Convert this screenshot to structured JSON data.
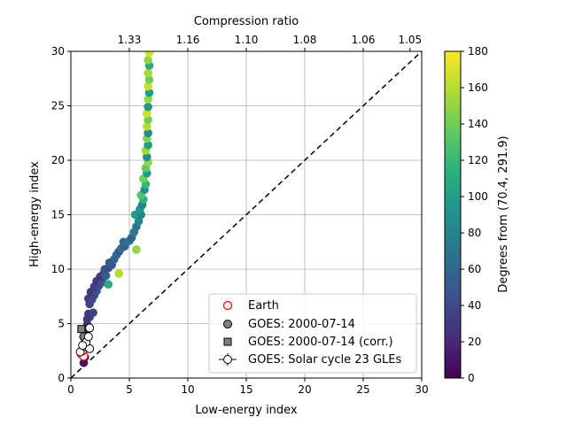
{
  "chart_data": {
    "type": "scatter",
    "xlabel": "Low-energy index",
    "ylabel": "High-energy index",
    "top_xlabel": "Compression ratio",
    "xlim": [
      0,
      30
    ],
    "ylim": [
      0,
      30
    ],
    "xticks": [
      "0",
      "5",
      "10",
      "15",
      "20",
      "25",
      "30"
    ],
    "yticks": [
      "0",
      "5",
      "10",
      "15",
      "20",
      "25",
      "30"
    ],
    "top_ticks": [
      {
        "x": 5,
        "label": "1.33"
      },
      {
        "x": 10,
        "label": "1.16"
      },
      {
        "x": 15,
        "label": "1.10"
      },
      {
        "x": 20,
        "label": "1.08"
      },
      {
        "x": 25,
        "label": "1.06"
      },
      {
        "x": 29,
        "label": "1.05"
      }
    ],
    "grid": true,
    "legend_position": "lower right",
    "colorbar": {
      "label": "Degrees from (70.4, 291.9)",
      "min": 0,
      "max": 180,
      "ticks": [
        "0",
        "20",
        "40",
        "60",
        "80",
        "100",
        "120",
        "140",
        "160",
        "180"
      ],
      "colormap": "viridis"
    },
    "reference_line": {
      "style": "dashed",
      "from": [
        0,
        0
      ],
      "to": [
        30,
        30
      ]
    },
    "legend": [
      {
        "label": "Earth",
        "marker": "open-circle",
        "color": "#ff0000"
      },
      {
        "label": "GOES: 2000-07-14",
        "marker": "circle",
        "color": "#808080"
      },
      {
        "label": "GOES: 2000-07-14 (corr.)",
        "marker": "square",
        "color": "#808080"
      },
      {
        "label": "GOES: Solar cycle 23 GLEs",
        "marker": "errorbar-circle",
        "color": "#ffffff"
      }
    ],
    "series": [
      {
        "name": "Degrees from (70.4, 291.9)",
        "points": [
          {
            "x": 1.1,
            "y": 1.4,
            "c": 10
          },
          {
            "x": 1.2,
            "y": 1.9,
            "c": 15
          },
          {
            "x": 1.0,
            "y": 2.3,
            "c": 12
          },
          {
            "x": 1.3,
            "y": 2.7,
            "c": 18
          },
          {
            "x": 1.1,
            "y": 3.1,
            "c": 15
          },
          {
            "x": 1.2,
            "y": 3.6,
            "c": 20
          },
          {
            "x": 1.3,
            "y": 4.1,
            "c": 22
          },
          {
            "x": 1.2,
            "y": 4.5,
            "c": 20
          },
          {
            "x": 1.4,
            "y": 4.9,
            "c": 25
          },
          {
            "x": 1.4,
            "y": 5.4,
            "c": 28
          },
          {
            "x": 1.6,
            "y": 5.6,
            "c": 30
          },
          {
            "x": 1.5,
            "y": 5.9,
            "c": 28
          },
          {
            "x": 1.9,
            "y": 6.0,
            "c": 35
          },
          {
            "x": 1.6,
            "y": 6.8,
            "c": 35
          },
          {
            "x": 1.5,
            "y": 7.3,
            "c": 32
          },
          {
            "x": 1.8,
            "y": 7.2,
            "c": 40
          },
          {
            "x": 2.0,
            "y": 7.6,
            "c": 38
          },
          {
            "x": 1.7,
            "y": 7.9,
            "c": 30
          },
          {
            "x": 2.2,
            "y": 8.0,
            "c": 45
          },
          {
            "x": 2.0,
            "y": 8.4,
            "c": 32
          },
          {
            "x": 2.4,
            "y": 8.5,
            "c": 40
          },
          {
            "x": 2.2,
            "y": 8.9,
            "c": 28
          },
          {
            "x": 2.7,
            "y": 8.8,
            "c": 45
          },
          {
            "x": 3.2,
            "y": 8.6,
            "c": 110
          },
          {
            "x": 2.5,
            "y": 9.3,
            "c": 30
          },
          {
            "x": 2.8,
            "y": 9.6,
            "c": 38
          },
          {
            "x": 3.0,
            "y": 9.4,
            "c": 55
          },
          {
            "x": 4.1,
            "y": 9.6,
            "c": 160
          },
          {
            "x": 2.9,
            "y": 10.0,
            "c": 45
          },
          {
            "x": 3.2,
            "y": 10.1,
            "c": 42
          },
          {
            "x": 3.5,
            "y": 10.4,
            "c": 48
          },
          {
            "x": 3.3,
            "y": 10.6,
            "c": 52
          },
          {
            "x": 3.7,
            "y": 10.9,
            "c": 55
          },
          {
            "x": 3.9,
            "y": 11.3,
            "c": 60
          },
          {
            "x": 4.1,
            "y": 11.6,
            "c": 48
          },
          {
            "x": 4.3,
            "y": 11.9,
            "c": 65
          },
          {
            "x": 4.6,
            "y": 12.1,
            "c": 55
          },
          {
            "x": 4.5,
            "y": 12.5,
            "c": 60
          },
          {
            "x": 5.0,
            "y": 12.6,
            "c": 70
          },
          {
            "x": 5.2,
            "y": 12.9,
            "c": 58
          },
          {
            "x": 5.4,
            "y": 13.4,
            "c": 75
          },
          {
            "x": 5.6,
            "y": 11.8,
            "c": 150
          },
          {
            "x": 5.6,
            "y": 13.9,
            "c": 70
          },
          {
            "x": 5.8,
            "y": 14.4,
            "c": 85
          },
          {
            "x": 5.5,
            "y": 15.0,
            "c": 100
          },
          {
            "x": 6.0,
            "y": 15.0,
            "c": 80
          },
          {
            "x": 5.9,
            "y": 15.5,
            "c": 95
          },
          {
            "x": 6.1,
            "y": 15.9,
            "c": 78
          },
          {
            "x": 6.2,
            "y": 16.4,
            "c": 115
          },
          {
            "x": 6.0,
            "y": 16.8,
            "c": 130
          },
          {
            "x": 6.3,
            "y": 17.3,
            "c": 90
          },
          {
            "x": 6.4,
            "y": 17.8,
            "c": 120
          },
          {
            "x": 6.2,
            "y": 18.3,
            "c": 140
          },
          {
            "x": 6.5,
            "y": 18.8,
            "c": 100
          },
          {
            "x": 6.4,
            "y": 19.3,
            "c": 135
          },
          {
            "x": 6.6,
            "y": 19.8,
            "c": 150
          },
          {
            "x": 6.5,
            "y": 20.3,
            "c": 90
          },
          {
            "x": 6.4,
            "y": 20.9,
            "c": 155
          },
          {
            "x": 6.6,
            "y": 21.4,
            "c": 100
          },
          {
            "x": 6.5,
            "y": 22.0,
            "c": 145
          },
          {
            "x": 6.6,
            "y": 22.5,
            "c": 85
          },
          {
            "x": 6.5,
            "y": 23.1,
            "c": 160
          },
          {
            "x": 6.6,
            "y": 23.7,
            "c": 140
          },
          {
            "x": 6.5,
            "y": 24.3,
            "c": 165
          },
          {
            "x": 6.6,
            "y": 24.9,
            "c": 95
          },
          {
            "x": 6.6,
            "y": 25.6,
            "c": 150
          },
          {
            "x": 6.7,
            "y": 26.2,
            "c": 100
          },
          {
            "x": 6.6,
            "y": 26.8,
            "c": 165
          },
          {
            "x": 6.7,
            "y": 27.4,
            "c": 140
          },
          {
            "x": 6.6,
            "y": 28.0,
            "c": 155
          },
          {
            "x": 6.7,
            "y": 28.7,
            "c": 110
          },
          {
            "x": 6.6,
            "y": 29.2,
            "c": 150
          },
          {
            "x": 6.7,
            "y": 29.9,
            "c": 168
          }
        ]
      },
      {
        "name": "Earth",
        "points": [
          {
            "x": 0.9,
            "y": 2.2
          },
          {
            "x": 1.1,
            "y": 2.0
          },
          {
            "x": 1.0,
            "y": 2.5
          }
        ]
      },
      {
        "name": "GOES: 2000-07-14",
        "points": [
          {
            "x": 1.1,
            "y": 3.8
          }
        ]
      },
      {
        "name": "GOES: 2000-07-14 (corr.)",
        "points": [
          {
            "x": 0.9,
            "y": 4.5
          }
        ]
      },
      {
        "name": "GOES: Solar cycle 23 GLEs",
        "points": [
          {
            "x": 0.8,
            "y": 2.4
          },
          {
            "x": 1.2,
            "y": 2.9
          },
          {
            "x": 1.6,
            "y": 2.7
          },
          {
            "x": 1.3,
            "y": 3.3
          },
          {
            "x": 1.5,
            "y": 3.8
          },
          {
            "x": 1.6,
            "y": 4.6
          },
          {
            "x": 1.0,
            "y": 3.0
          }
        ]
      }
    ]
  }
}
